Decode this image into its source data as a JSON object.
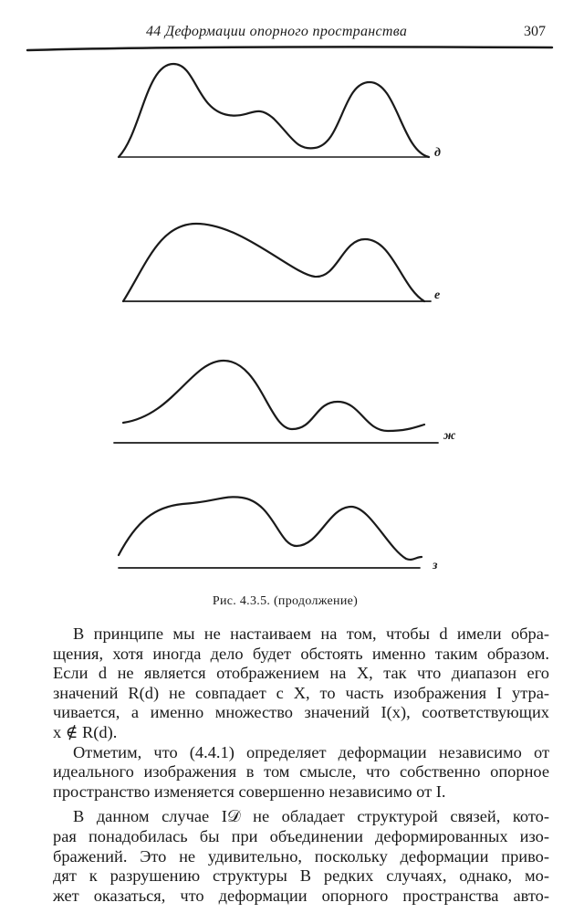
{
  "header": {
    "running_title": "44 Деформации опорного пространства",
    "page_number": "307"
  },
  "figure": {
    "panel_labels": [
      "д",
      "е",
      "ж",
      "з"
    ],
    "caption": "Рис. 4.3.5. (продолжение)"
  },
  "body": {
    "lines": [
      "В принципе мы не настаиваем на том, чтобы d имели обра-",
      "щения, хотя иногда дело будет обстоять именно таким образом.",
      "Если d не является отображением на X, так что диапазон его",
      "значений R(d) не совпадает с X, то часть изображения I утра-",
      "чивается, а именно множество значений I(x), соответствующих",
      "x ∉ R(d).",
      "Отметим, что (4.4.1) определяет деформации независимо от",
      "идеального изображения в том смысле, что собственно опорное",
      "пространство изменяется совершенно независимо от I.",
      "В данном случае I𝒟 не обладает структурой связей, кото-",
      "рая понадобилась бы при объединении деформированных изо-",
      "бражений. Это не удивительно, поскольку деформации приво-",
      "дят к разрушению структуры  В редких случаях, однако, мо-",
      "жет оказаться, что деформации опорного пространства авто-"
    ]
  }
}
